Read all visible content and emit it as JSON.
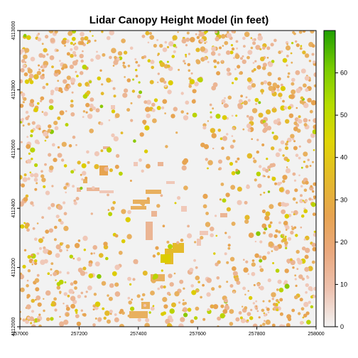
{
  "title": "Lidar Canopy Height Model (in feet)",
  "x_axis": {
    "min": 257000,
    "max": 258000,
    "ticks": [
      "257000",
      "257200",
      "257400",
      "257600",
      "257800",
      "258000"
    ]
  },
  "y_axis": {
    "min": 4112000,
    "max": 4113000,
    "ticks": [
      "4112000",
      "4112200",
      "4112400",
      "4112600",
      "4112800",
      "4113000"
    ]
  },
  "legend": {
    "min": 0,
    "max": 70,
    "ticks": [
      "0",
      "10",
      "20",
      "30",
      "40",
      "50",
      "60"
    ],
    "colors": [
      "#f2f2f2",
      "#edc2b0",
      "#eaa97f",
      "#e7a451",
      "#e4ba2b",
      "#e0d506",
      "#b5dd00",
      "#77cb00",
      "#1f9e00"
    ]
  },
  "map": {
    "background": "#f2f2f2",
    "canopy_colors": [
      "#f0c8b8",
      "#ebb594",
      "#e8b05f",
      "#e7a451",
      "#e4ba2b",
      "#dccc00",
      "#b9d300",
      "#8ac800"
    ]
  }
}
